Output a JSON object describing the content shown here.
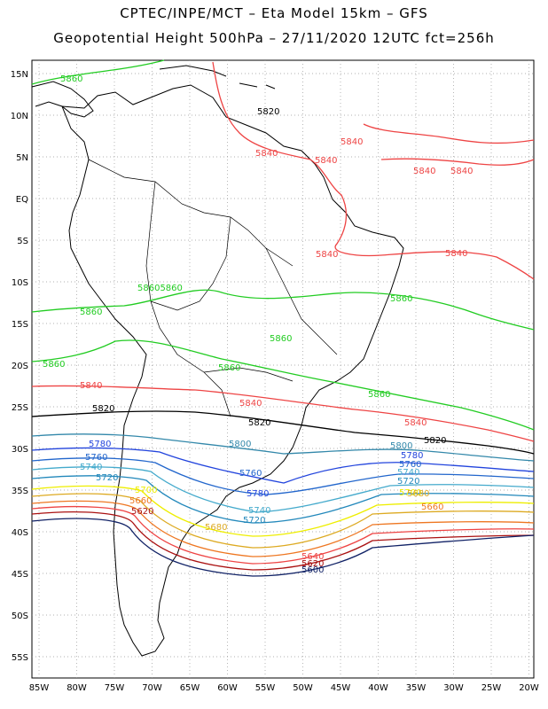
{
  "header": {
    "line1": "CPTEC/INPE/MCT –  Eta Model 15km – GFS",
    "line2": "Geopotential Height 500hPa – 27/11/2020 12UTC fct=256h"
  },
  "axes": {
    "lat_labels": [
      "15N",
      "10N",
      "5N",
      "EQ",
      "5S",
      "10S",
      "15S",
      "20S",
      "25S",
      "30S",
      "35S",
      "40S",
      "45S",
      "50S",
      "55S"
    ],
    "lon_labels": [
      "85W",
      "80W",
      "75W",
      "70W",
      "65W",
      "60W",
      "55W",
      "50W",
      "45W",
      "40W",
      "35W",
      "30W",
      "25W",
      "20W"
    ]
  },
  "colors": {
    "c5860": "#22cc22",
    "c5840": "#ee4444",
    "c5820": "#000000",
    "c5800": "#3388aa",
    "c5780": "#2244dd",
    "c5760": "#2266cc",
    "c5740": "#44aacc",
    "c5720": "#2288bb",
    "c5700": "#eeee00",
    "c5680": "#ddaa22",
    "c5660": "#ee7722",
    "c5640": "#ee4444",
    "c5620": "#aa1111",
    "c5600": "#112266"
  },
  "contour_labels": {
    "l5860": "5860",
    "l5840": "5840",
    "l5820": "5820",
    "l5800": "5800",
    "l5780": "5780",
    "l5760": "5760",
    "l5740": "5740",
    "l5720": "5720",
    "l5700": "5700",
    "l5680": "5680",
    "l5660": "5660",
    "l5640": "5640",
    "l5620": "5620",
    "l5600": "5600",
    "l5860x2": "58605860"
  }
}
